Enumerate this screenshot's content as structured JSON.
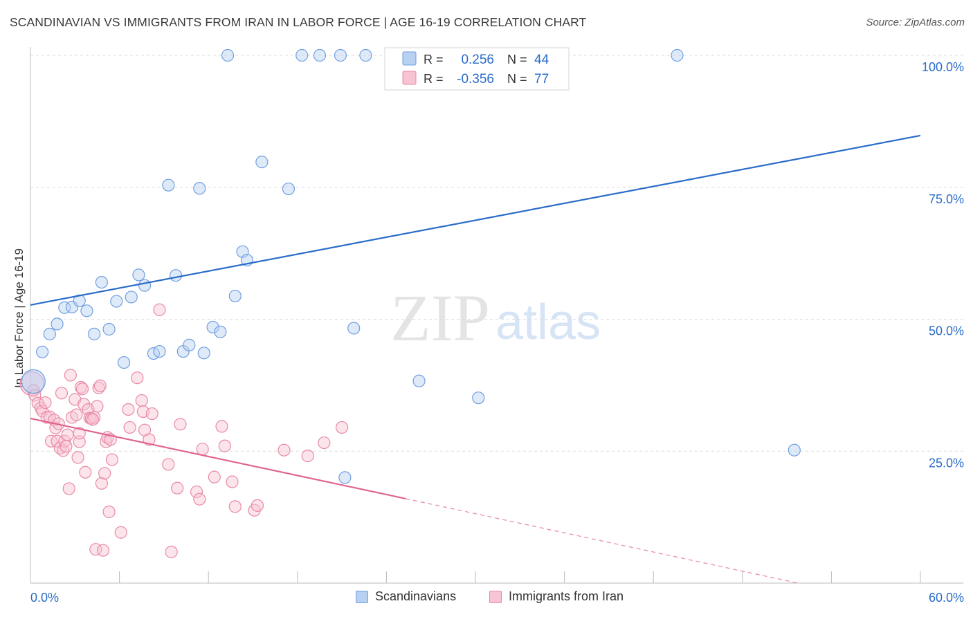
{
  "header": {
    "title": "SCANDINAVIAN VS IMMIGRANTS FROM IRAN IN LABOR FORCE | AGE 16-19 CORRELATION CHART",
    "source": "Source: ZipAtlas.com"
  },
  "watermark": {
    "part1": "ZIP",
    "part2": "atlas"
  },
  "colors": {
    "blue_fill": "#b8d0f2",
    "blue_stroke": "#6f9ee0",
    "blue_line": "#2a6cc9",
    "pink_fill": "#f8c3d2",
    "pink_stroke": "#e88aa5",
    "pink_line": "#e06590",
    "value_text": "#2a6cc9",
    "grid": "#dcdcdc",
    "axis": "#bbbbbb"
  },
  "legend_box": {
    "rows": [
      {
        "series": "blue",
        "r_label": "R =",
        "r_value": "0.256",
        "n_label": "N =",
        "n_value": "44"
      },
      {
        "series": "pink",
        "r_label": "R =",
        "r_value": "-0.356",
        "n_label": "N =",
        "n_value": "77"
      }
    ]
  },
  "legend_bottom": [
    {
      "series": "blue",
      "label": "Scandinavians"
    },
    {
      "series": "pink",
      "label": "Immigrants from Iran"
    }
  ],
  "chart_data": {
    "type": "scatter",
    "title": "SCANDINAVIAN VS IMMIGRANTS FROM IRAN IN LABOR FORCE | AGE 16-19 CORRELATION CHART",
    "xlabel": "",
    "ylabel": "In Labor Force | Age 16-19",
    "xlim": [
      0,
      60
    ],
    "ylim": [
      0,
      100
    ],
    "x_tick_labels": [
      "0.0%",
      "60.0%"
    ],
    "y_ticks": [
      25,
      50,
      75,
      100
    ],
    "y_tick_labels": [
      "25.0%",
      "50.0%",
      "75.0%",
      "100.0%"
    ],
    "grid": true,
    "legend_position": "top-center",
    "series": [
      {
        "name": "Scandinavians",
        "color": "#6f9ee0",
        "r": 0.256,
        "n": 44,
        "trend": {
          "x": [
            0,
            60
          ],
          "y": [
            52.7,
            84.8
          ]
        },
        "points": [
          [
            0.2,
            38.2,
            1
          ],
          [
            0.8,
            43.8,
            0
          ],
          [
            1.3,
            47.2,
            0
          ],
          [
            1.8,
            49.1,
            0
          ],
          [
            2.3,
            52.2,
            0
          ],
          [
            2.8,
            52.3,
            0
          ],
          [
            3.3,
            53.5,
            0
          ],
          [
            3.8,
            51.6,
            0
          ],
          [
            4.3,
            47.2,
            0
          ],
          [
            4.8,
            57.0,
            0
          ],
          [
            5.3,
            48.1,
            0
          ],
          [
            5.8,
            53.4,
            0
          ],
          [
            6.3,
            41.8,
            0
          ],
          [
            6.8,
            54.2,
            0
          ],
          [
            7.3,
            58.4,
            0
          ],
          [
            7.7,
            56.4,
            0
          ],
          [
            8.3,
            43.5,
            0
          ],
          [
            8.7,
            43.9,
            0
          ],
          [
            9.3,
            75.4,
            0
          ],
          [
            9.8,
            58.3,
            0
          ],
          [
            10.3,
            43.9,
            0
          ],
          [
            10.7,
            45.1,
            0
          ],
          [
            11.4,
            74.8,
            0
          ],
          [
            11.7,
            43.6,
            0
          ],
          [
            12.3,
            48.5,
            0
          ],
          [
            12.8,
            47.6,
            0
          ],
          [
            13.3,
            100,
            0
          ],
          [
            13.8,
            54.4,
            0
          ],
          [
            14.3,
            62.8,
            0
          ],
          [
            14.6,
            61.2,
            0
          ],
          [
            15.6,
            79.8,
            0
          ],
          [
            17.4,
            74.7,
            0
          ],
          [
            18.3,
            100,
            0
          ],
          [
            19.5,
            100,
            0
          ],
          [
            20.9,
            100,
            0
          ],
          [
            21.8,
            48.3,
            0
          ],
          [
            22.6,
            100,
            0
          ],
          [
            24.3,
            100,
            0
          ],
          [
            25.6,
            100,
            0
          ],
          [
            26.2,
            38.3,
            0
          ],
          [
            30.2,
            35.1,
            0
          ],
          [
            43.6,
            100,
            0
          ],
          [
            51.5,
            25.2,
            0
          ],
          [
            21.2,
            20.0,
            0
          ]
        ]
      },
      {
        "name": "Immigrants from Iran",
        "color": "#e88aa5",
        "r": -0.356,
        "n": 77,
        "trend": {
          "x": [
            0,
            25.3
          ],
          "y": [
            31.2,
            16.0
          ],
          "dashed_to": {
            "x": 60,
            "y": -5.0
          }
        },
        "points": [
          [
            0.1,
            37.8,
            1
          ],
          [
            0.2,
            36.5,
            0
          ],
          [
            0.3,
            35.6,
            0
          ],
          [
            0.5,
            34.1,
            0
          ],
          [
            0.7,
            33.2,
            0
          ],
          [
            0.8,
            32.6,
            0
          ],
          [
            1.0,
            34.2,
            0
          ],
          [
            1.1,
            31.4,
            0
          ],
          [
            1.3,
            31.5,
            0
          ],
          [
            1.4,
            26.9,
            0
          ],
          [
            1.6,
            30.9,
            0
          ],
          [
            1.7,
            29.4,
            0
          ],
          [
            1.8,
            26.9,
            0
          ],
          [
            1.9,
            30.2,
            0
          ],
          [
            2.0,
            25.6,
            0
          ],
          [
            2.1,
            36.0,
            0
          ],
          [
            2.2,
            25.1,
            0
          ],
          [
            2.3,
            26.9,
            0
          ],
          [
            2.4,
            25.9,
            0
          ],
          [
            2.5,
            28.1,
            0
          ],
          [
            2.6,
            17.9,
            0
          ],
          [
            2.7,
            39.4,
            0
          ],
          [
            2.8,
            31.4,
            0
          ],
          [
            3.0,
            34.8,
            0
          ],
          [
            3.1,
            31.9,
            0
          ],
          [
            3.2,
            23.8,
            0
          ],
          [
            3.3,
            26.8,
            0
          ],
          [
            3.4,
            37.1,
            0
          ],
          [
            3.5,
            36.8,
            0
          ],
          [
            3.6,
            33.9,
            0
          ],
          [
            3.7,
            21.0,
            0
          ],
          [
            3.9,
            32.9,
            0
          ],
          [
            4.0,
            31.3,
            0
          ],
          [
            4.1,
            31.2,
            0
          ],
          [
            4.3,
            31.4,
            0
          ],
          [
            4.4,
            6.4,
            0
          ],
          [
            4.5,
            33.5,
            0
          ],
          [
            4.6,
            37.0,
            0
          ],
          [
            4.7,
            37.4,
            0
          ],
          [
            4.8,
            18.9,
            0
          ],
          [
            4.9,
            6.2,
            0
          ],
          [
            5.0,
            20.8,
            0
          ],
          [
            5.1,
            26.8,
            0
          ],
          [
            5.2,
            27.6,
            0
          ],
          [
            5.3,
            13.5,
            0
          ],
          [
            5.4,
            27.2,
            0
          ],
          [
            5.5,
            23.4,
            0
          ],
          [
            6.1,
            9.6,
            0
          ],
          [
            6.6,
            32.9,
            0
          ],
          [
            6.7,
            29.5,
            0
          ],
          [
            7.2,
            38.9,
            0
          ],
          [
            7.5,
            34.6,
            0
          ],
          [
            7.6,
            32.5,
            0
          ],
          [
            7.7,
            29.0,
            0
          ],
          [
            8.0,
            27.2,
            0
          ],
          [
            8.2,
            32.1,
            0
          ],
          [
            8.7,
            51.8,
            0
          ],
          [
            9.3,
            22.5,
            0
          ],
          [
            9.5,
            5.9,
            0
          ],
          [
            9.9,
            18.0,
            0
          ],
          [
            10.1,
            30.1,
            0
          ],
          [
            11.2,
            17.3,
            0
          ],
          [
            11.4,
            15.9,
            0
          ],
          [
            11.6,
            25.4,
            0
          ],
          [
            12.4,
            20.1,
            0
          ],
          [
            12.9,
            29.7,
            0
          ],
          [
            13.1,
            26.0,
            0
          ],
          [
            13.6,
            19.2,
            0
          ],
          [
            13.8,
            14.5,
            0
          ],
          [
            15.1,
            13.8,
            0
          ],
          [
            15.3,
            14.7,
            0
          ],
          [
            17.1,
            25.2,
            0
          ],
          [
            18.7,
            24.1,
            0
          ],
          [
            19.8,
            26.6,
            0
          ],
          [
            21.0,
            29.5,
            0
          ],
          [
            4.2,
            31.0,
            0
          ],
          [
            3.3,
            28.4,
            0
          ]
        ]
      }
    ]
  }
}
